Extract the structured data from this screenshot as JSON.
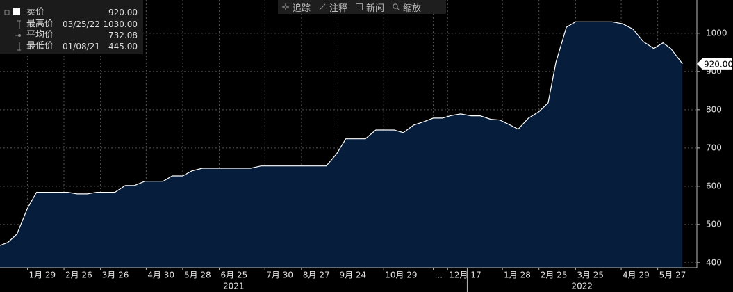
{
  "chart_data": {
    "type": "area",
    "x": [
      "2021-01-08",
      "2021-01-14",
      "2021-01-21",
      "2021-01-29",
      "2021-02-05",
      "2021-03-01",
      "2021-03-08",
      "2021-03-16",
      "2021-03-23",
      "2021-04-06",
      "2021-04-14",
      "2021-04-21",
      "2021-04-29",
      "2021-05-13",
      "2021-05-20",
      "2021-05-28",
      "2021-06-04",
      "2021-06-12",
      "2021-07-19",
      "2021-07-27",
      "2021-09-15",
      "2021-09-23",
      "2021-09-30",
      "2021-10-15",
      "2021-10-23",
      "2021-11-06",
      "2021-11-13",
      "2021-11-21",
      "2021-11-29",
      "2021-12-06",
      "2021-12-13",
      "2021-12-20",
      "2021-12-27",
      "2022-01-04",
      "2022-01-11",
      "2022-01-19",
      "2022-01-26",
      "2022-02-03",
      "2022-02-09",
      "2022-02-17",
      "2022-02-25",
      "2022-03-04",
      "2022-03-10",
      "2022-03-18",
      "2022-03-25",
      "2022-04-03",
      "2022-04-22",
      "2022-04-30",
      "2022-05-08",
      "2022-05-16",
      "2022-05-24",
      "2022-05-31",
      "2022-06-06",
      "2022-06-15"
    ],
    "series": [
      {
        "name": "卖价",
        "color": "#ffffff",
        "fill": "#061d3b",
        "values": [
          445,
          453,
          475,
          542,
          584,
          584,
          580,
          580,
          584,
          584,
          602,
          602,
          613,
          613,
          627,
          627,
          640,
          647,
          647,
          653,
          653,
          685,
          724,
          724,
          747,
          747,
          740,
          760,
          769,
          778,
          778,
          785,
          789,
          784,
          784,
          775,
          773,
          760,
          749,
          778,
          795,
          818,
          924,
          1016,
          1030,
          1030,
          1030,
          1025,
          1011,
          978,
          960,
          975,
          960,
          920
        ]
      }
    ],
    "xlim": [
      "2021-01-08",
      "2022-06-26"
    ],
    "xticks": [
      {
        "value": "2021-01-29",
        "label": "1月 29"
      },
      {
        "value": "2021-02-26",
        "label": "2月 26"
      },
      {
        "value": "2021-03-26",
        "label": "3月 26"
      },
      {
        "value": "2021-04-30",
        "label": "4月 30"
      },
      {
        "value": "2021-05-28",
        "label": "5月 28"
      },
      {
        "value": "2021-06-25",
        "label": "6月 25"
      },
      {
        "value": "2021-07-30",
        "label": "7月 30"
      },
      {
        "value": "2021-08-27",
        "label": "8月 27"
      },
      {
        "value": "2021-09-24",
        "label": "9月 24"
      },
      {
        "value": "2021-10-29",
        "label": "10月 29"
      },
      {
        "value": "2021-12-06",
        "label": "..."
      },
      {
        "value": "2021-12-17",
        "label": "12月 17"
      },
      {
        "value": "2022-01-28",
        "label": "1月 28"
      },
      {
        "value": "2022-02-25",
        "label": "2月 25"
      },
      {
        "value": "2022-03-25",
        "label": "3月 25"
      },
      {
        "value": "2022-04-29",
        "label": "4月 29"
      },
      {
        "value": "2022-05-27",
        "label": "5月 27"
      }
    ],
    "years": [
      "2021",
      "2022"
    ],
    "ylim": [
      387,
      1087
    ],
    "yticks": [
      400,
      500,
      600,
      700,
      800,
      900,
      1000
    ],
    "grid": true,
    "last_label": "920.00",
    "stats": [
      {
        "name": "卖价",
        "value": "920.00"
      },
      {
        "name": "最高价",
        "date": "03/25/22",
        "value": "1030.00"
      },
      {
        "name": "平均价",
        "value": "732.08"
      },
      {
        "name": "最低价",
        "date": "01/08/21",
        "value": "445.00"
      }
    ]
  },
  "toolbar": [
    "追踪",
    "注释",
    "新闻",
    "缩放"
  ]
}
